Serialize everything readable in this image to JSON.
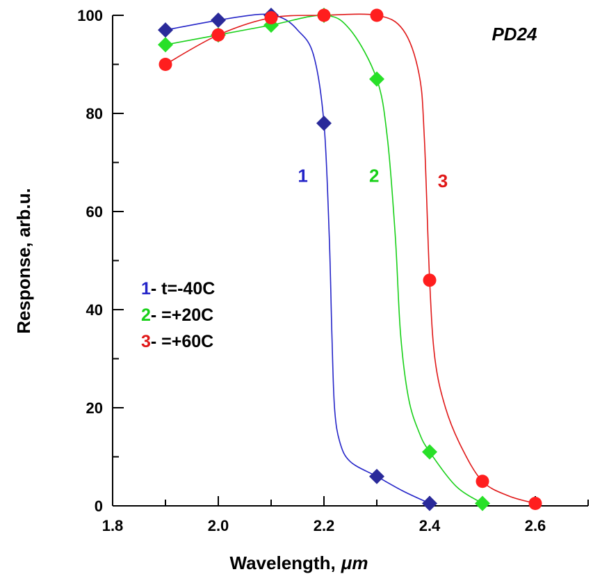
{
  "chart_data": {
    "type": "line",
    "tag": "PD24",
    "xlabel_prefix": "Wavelength,",
    "xlabel_unit": "μm",
    "ylabel": "Response, arb.u.",
    "xlim": [
      1.8,
      2.7
    ],
    "ylim": [
      0,
      100
    ],
    "x_ticks": [
      "1.8",
      "2.0",
      "2.2",
      "2.4",
      "2.6"
    ],
    "y_ticks": [
      "0",
      "20",
      "40",
      "60",
      "80",
      "100"
    ],
    "grid": false,
    "legend_position": "left-middle",
    "series": [
      {
        "id": "1",
        "marker": "diamond",
        "color": "#2424c8",
        "markerColor": "#2a2a9a",
        "legend_num": "1",
        "legend_text": "- t=-40C",
        "points": [
          [
            1.9,
            97
          ],
          [
            2.0,
            99
          ],
          [
            2.1,
            100
          ],
          [
            2.2,
            78
          ],
          [
            2.3,
            6
          ],
          [
            2.4,
            0.5
          ]
        ],
        "curve": [
          [
            1.9,
            97
          ],
          [
            2.0,
            99
          ],
          [
            2.08,
            100.2
          ],
          [
            2.12,
            99.5
          ],
          [
            2.15,
            97
          ],
          [
            2.18,
            92
          ],
          [
            2.2,
            78
          ],
          [
            2.21,
            55
          ],
          [
            2.215,
            35
          ],
          [
            2.22,
            20
          ],
          [
            2.23,
            13
          ],
          [
            2.25,
            9
          ],
          [
            2.3,
            6
          ],
          [
            2.35,
            3
          ],
          [
            2.4,
            0.5
          ]
        ],
        "label_x": 2.16,
        "label_y": 66
      },
      {
        "id": "2",
        "marker": "diamond",
        "color": "#18d018",
        "markerColor": "#28e028",
        "legend_num": "2",
        "legend_text": "-  =+20C",
        "points": [
          [
            1.9,
            94
          ],
          [
            2.0,
            96
          ],
          [
            2.1,
            98
          ],
          [
            2.2,
            100
          ],
          [
            2.3,
            87
          ],
          [
            2.4,
            11
          ],
          [
            2.5,
            0.5
          ]
        ],
        "curve": [
          [
            1.9,
            94
          ],
          [
            2.0,
            96
          ],
          [
            2.1,
            98
          ],
          [
            2.2,
            100
          ],
          [
            2.25,
            97
          ],
          [
            2.3,
            87
          ],
          [
            2.32,
            75
          ],
          [
            2.335,
            55
          ],
          [
            2.345,
            35
          ],
          [
            2.36,
            22
          ],
          [
            2.38,
            15
          ],
          [
            2.4,
            11
          ],
          [
            2.45,
            4
          ],
          [
            2.5,
            0.5
          ]
        ],
        "label_x": 2.295,
        "label_y": 66
      },
      {
        "id": "3",
        "marker": "circle",
        "color": "#e01818",
        "markerColor": "#ff1e1e",
        "legend_num": "3",
        "legend_text": "-  =+60C",
        "points": [
          [
            1.9,
            90
          ],
          [
            2.0,
            96
          ],
          [
            2.1,
            99.5
          ],
          [
            2.2,
            100
          ],
          [
            2.3,
            100
          ],
          [
            2.4,
            46
          ],
          [
            2.5,
            5
          ],
          [
            2.6,
            0.5
          ]
        ],
        "curve": [
          [
            1.9,
            90
          ],
          [
            2.0,
            96
          ],
          [
            2.1,
            99.5
          ],
          [
            2.2,
            100
          ],
          [
            2.3,
            100
          ],
          [
            2.35,
            97
          ],
          [
            2.38,
            88
          ],
          [
            2.39,
            75
          ],
          [
            2.4,
            46
          ],
          [
            2.41,
            30
          ],
          [
            2.43,
            20
          ],
          [
            2.46,
            12
          ],
          [
            2.5,
            5
          ],
          [
            2.55,
            2
          ],
          [
            2.6,
            0.5
          ]
        ],
        "label_x": 2.425,
        "label_y": 65
      }
    ]
  }
}
